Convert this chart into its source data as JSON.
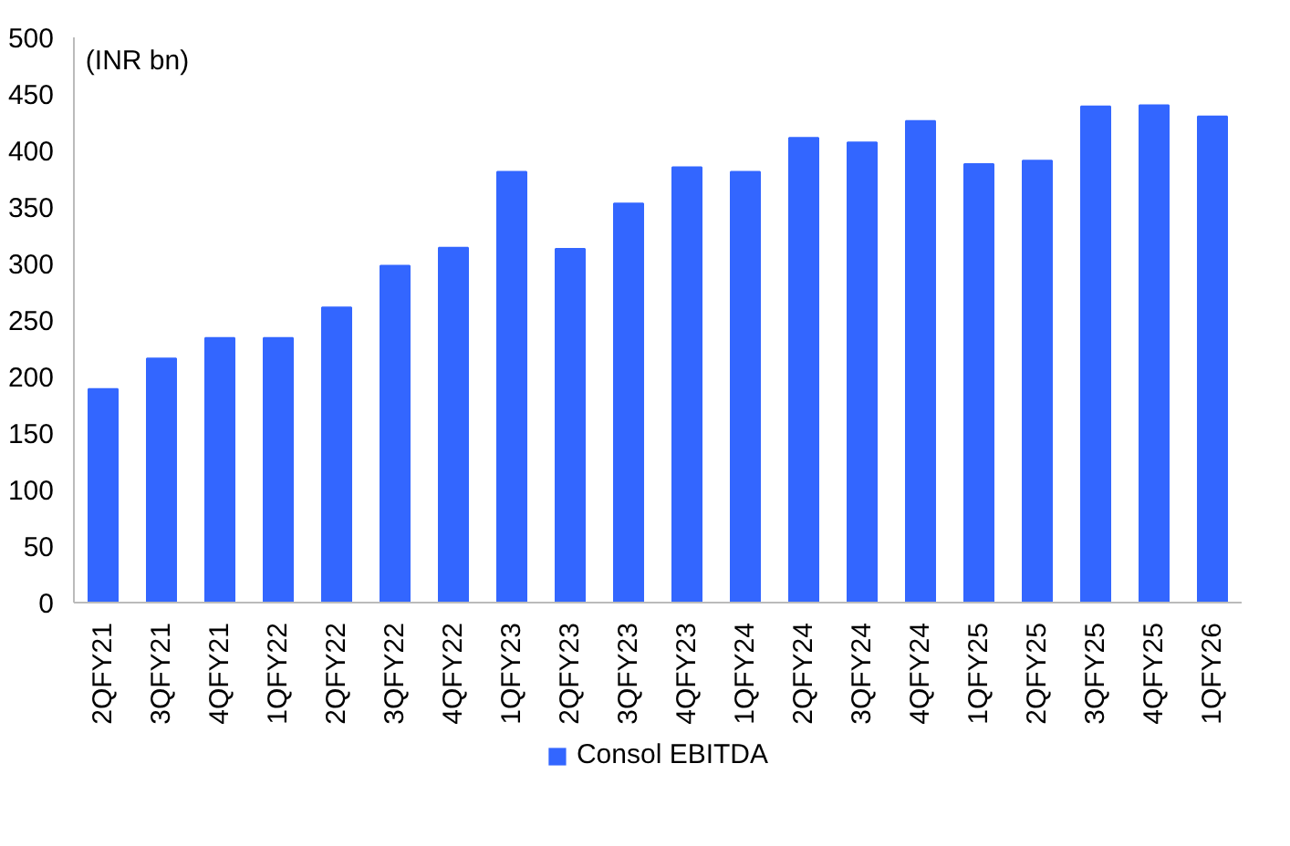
{
  "chart_data": {
    "type": "bar",
    "annotations": [
      "(INR bn)"
    ],
    "categories": [
      "2QFY21",
      "3QFY21",
      "4QFY21",
      "1QFY22",
      "2QFY22",
      "3QFY22",
      "4QFY22",
      "1QFY23",
      "2QFY23",
      "3QFY23",
      "4QFY23",
      "1QFY24",
      "2QFY24",
      "3QFY24",
      "4QFY24",
      "1QFY25",
      "2QFY25",
      "3QFY25",
      "4QFY25",
      "1QFY26"
    ],
    "series": [
      {
        "name": "Consol EBITDA",
        "color": "#3366ff",
        "values": [
          189,
          216,
          234,
          234,
          261,
          298,
          314,
          381,
          313,
          353,
          385,
          381,
          411,
          407,
          426,
          388,
          391,
          439,
          440,
          430
        ]
      }
    ],
    "ylim": [
      0,
      500
    ],
    "yticks": [
      0,
      50,
      100,
      150,
      200,
      250,
      300,
      350,
      400,
      450,
      500
    ],
    "grid": false,
    "legend": "bottom"
  }
}
